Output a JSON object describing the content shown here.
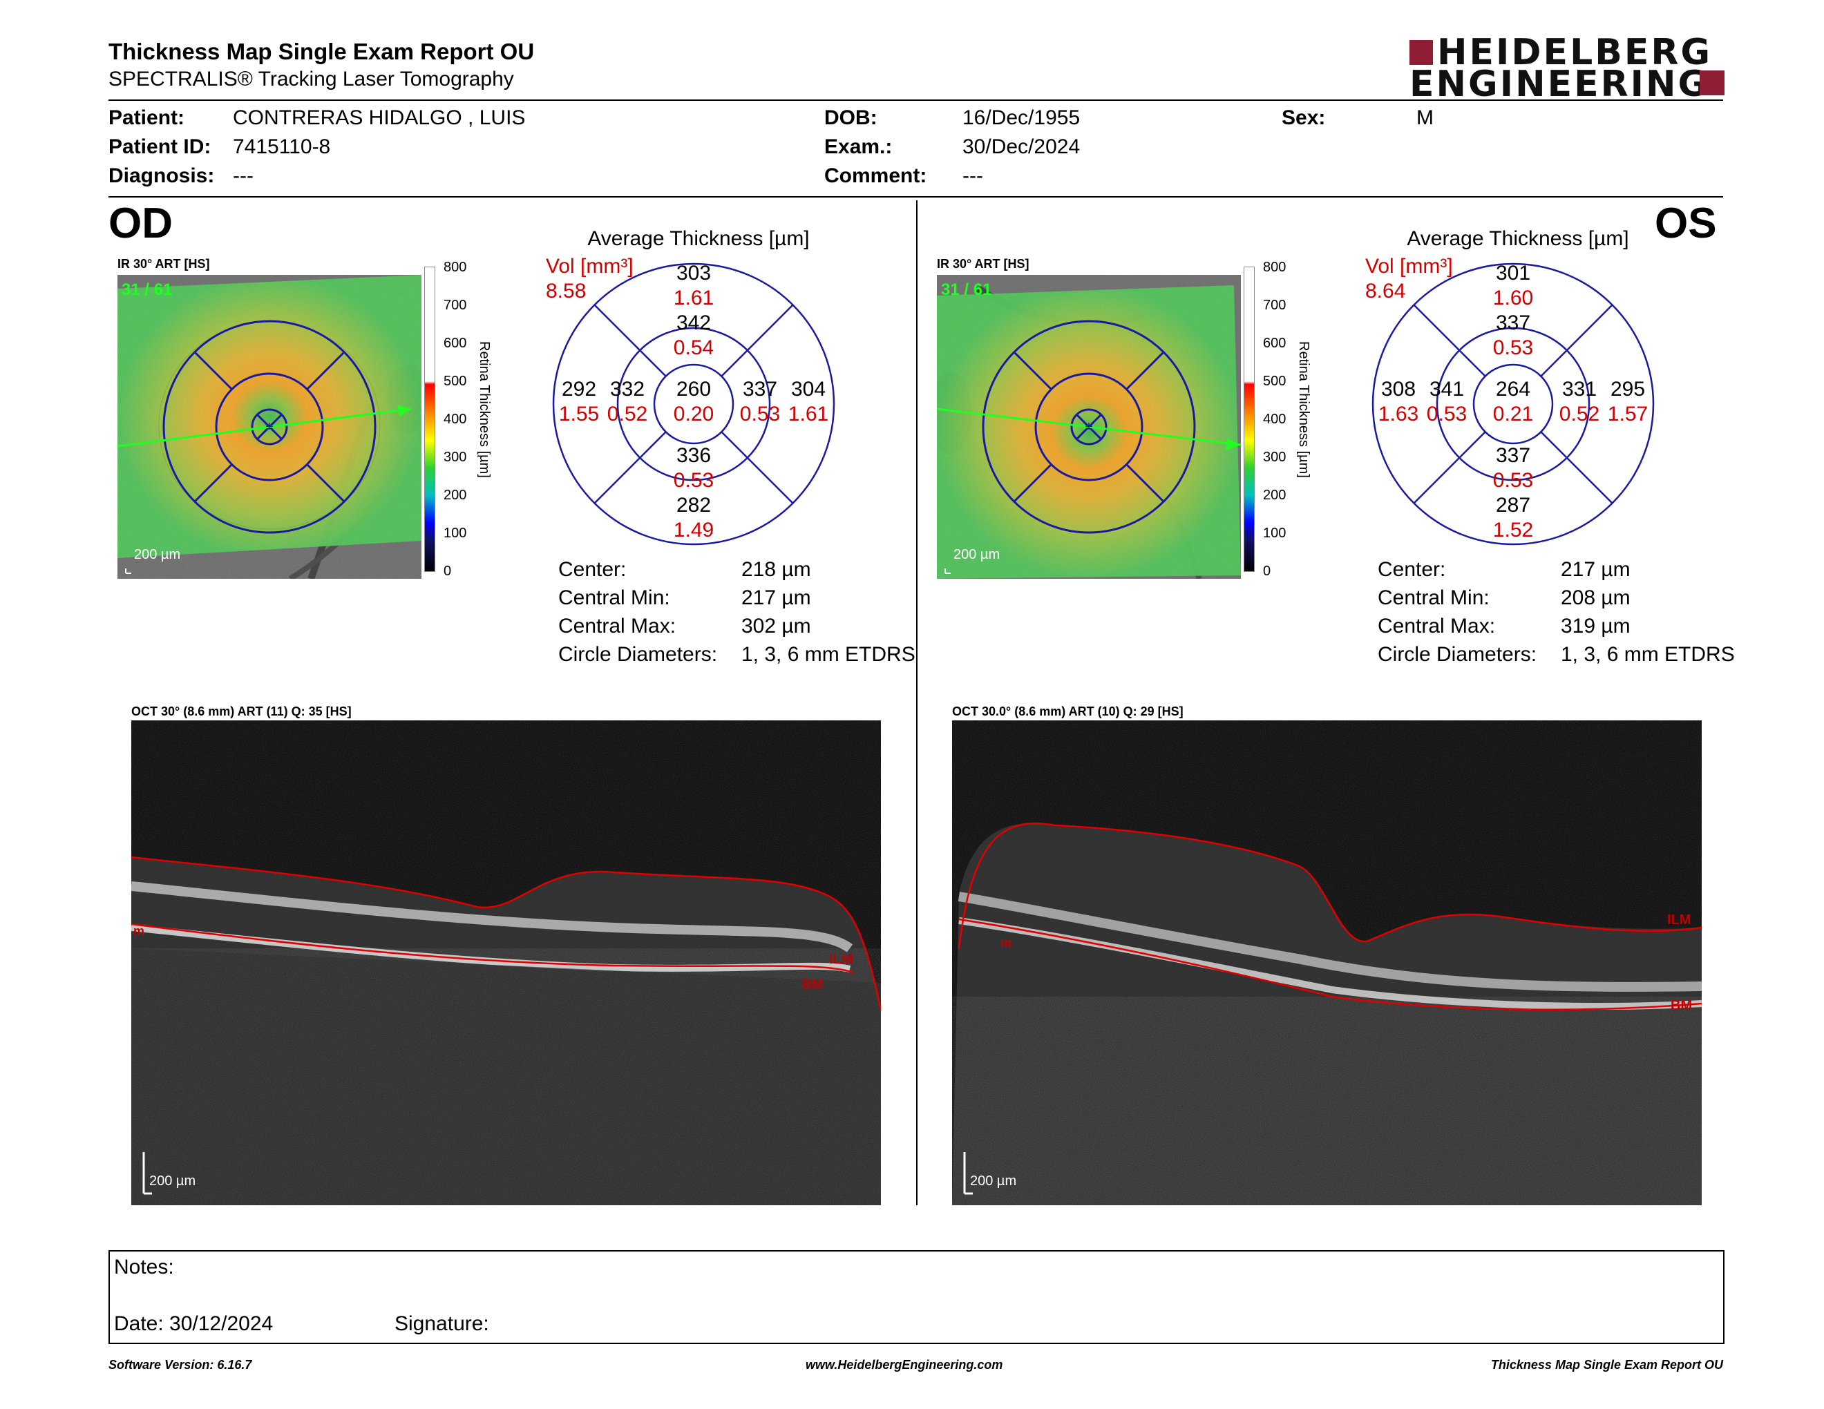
{
  "header": {
    "title": "Thickness Map Single Exam Report OU",
    "subtitle": "SPECTRALIS® Tracking Laser Tomography",
    "logo_line1": "HEIDELBERG",
    "logo_line2": "ENGINEERING"
  },
  "patient": {
    "patient_label": "Patient:",
    "patient_value": "CONTRERAS HIDALGO , LUIS",
    "id_label": "Patient ID:",
    "id_value": "7415110-8",
    "diag_label": "Diagnosis:",
    "diag_value": "---",
    "dob_label": "DOB:",
    "dob_value": "16/Dec/1955",
    "exam_label": "Exam.:",
    "exam_value": "30/Dec/2024",
    "comment_label": "Comment:",
    "comment_value": "---",
    "sex_label": "Sex:",
    "sex_value": "M"
  },
  "scale": {
    "ticks": [
      "800",
      "700",
      "600",
      "500",
      "400",
      "300",
      "200",
      "100",
      "0"
    ],
    "label": "Retina Thickness [µm]"
  },
  "od": {
    "eye": "OD",
    "ir_label": "IR 30° ART [HS]",
    "slice": "31 / 61",
    "scalebar": "200 µm",
    "grid_title": "Average Thickness [µm]",
    "vol_label": "Vol [mm³]",
    "vol_value": "8.58",
    "grid": {
      "outer_sup": "303",
      "outer_sup_v": "1.61",
      "inner_sup": "342",
      "inner_sup_v": "0.54",
      "outer_temp": "292",
      "outer_temp_v": "1.55",
      "inner_temp": "332",
      "inner_temp_v": "0.52",
      "center": "260",
      "center_v": "0.20",
      "inner_nas": "337",
      "inner_nas_v": "0.53",
      "outer_nas": "304",
      "outer_nas_v": "1.61",
      "inner_inf": "336",
      "inner_inf_v": "0.53",
      "outer_inf": "282",
      "outer_inf_v": "1.49"
    },
    "stats": [
      {
        "label": "Center:",
        "value": "218 µm"
      },
      {
        "label": "Central Min:",
        "value": "217 µm"
      },
      {
        "label": "Central Max:",
        "value": "302 µm"
      },
      {
        "label": "Circle Diameters:",
        "value": "1, 3, 6 mm ETDRS"
      }
    ],
    "oct_label": "OCT 30° (8.6 mm) ART (11) Q: 35 [HS]",
    "oct_scalebar": "200 µm",
    "layer_ilm": "ILM",
    "layer_bm": "BM",
    "layer_m": "m"
  },
  "os": {
    "eye": "OS",
    "ir_label": "IR 30° ART [HS]",
    "slice": "31 / 61",
    "scalebar": "200 µm",
    "grid_title": "Average Thickness [µm]",
    "vol_label": "Vol [mm³]",
    "vol_value": "8.64",
    "grid": {
      "outer_sup": "301",
      "outer_sup_v": "1.60",
      "inner_sup": "337",
      "inner_sup_v": "0.53",
      "outer_temp": "308",
      "outer_temp_v": "1.63",
      "inner_temp": "341",
      "inner_temp_v": "0.53",
      "center": "264",
      "center_v": "0.21",
      "inner_nas": "331",
      "inner_nas_v": "0.52",
      "outer_nas": "295",
      "outer_nas_v": "1.57",
      "inner_inf": "337",
      "inner_inf_v": "0.53",
      "outer_inf": "287",
      "outer_inf_v": "1.52"
    },
    "stats": [
      {
        "label": "Center:",
        "value": "217 µm"
      },
      {
        "label": "Central Min:",
        "value": "208 µm"
      },
      {
        "label": "Central Max:",
        "value": "319 µm"
      },
      {
        "label": "Circle Diameters:",
        "value": "1, 3, 6 mm ETDRS"
      }
    ],
    "oct_label": "OCT 30.0° (8.6 mm) ART (10) Q: 29 [HS]",
    "oct_scalebar": "200 µm",
    "layer_ilm": "ILM",
    "layer_bm": "BM",
    "layer_m": "m"
  },
  "notes": {
    "notes_label": "Notes:",
    "date_label": "Date: 30/12/2024",
    "signature_label": "Signature:"
  },
  "footer": {
    "left": "Software Version: 6.16.7",
    "center": "www.HeidelbergEngineering.com",
    "right": "Thickness Map Single Exam Report OU"
  },
  "colors": {
    "red_text": "#d00000",
    "grid_blue": "#1a1aa0",
    "logo_red": "#8f1d33"
  }
}
